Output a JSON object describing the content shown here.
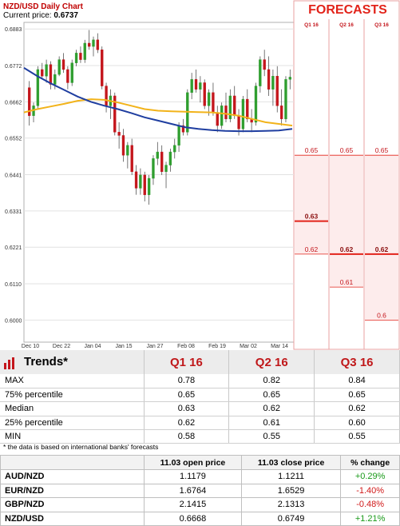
{
  "chart_data": {
    "type": "candlestick",
    "title": "NZD/USD Daily Chart",
    "current_price_label": "Current price:",
    "current_price": "0.6737",
    "y_ticks": [
      "0.6883",
      "0.6772",
      "0.6662",
      "0.6552",
      "0.6441",
      "0.6331",
      "0.6221",
      "0.6110",
      "0.6000"
    ],
    "ylim": [
      0.5933,
      0.6903
    ],
    "x_ticks": [
      "Dec 10",
      "Dec 22",
      "Jan 04",
      "Jan 15",
      "Jan 27",
      "Feb 08",
      "Feb 19",
      "Mar 02",
      "Mar 14"
    ],
    "candles": [
      [
        0.6705,
        0.6725,
        0.659,
        0.662
      ],
      [
        0.662,
        0.666,
        0.66,
        0.665
      ],
      [
        0.665,
        0.677,
        0.664,
        0.676
      ],
      [
        0.676,
        0.678,
        0.673,
        0.674
      ],
      [
        0.674,
        0.679,
        0.672,
        0.6775
      ],
      [
        0.6775,
        0.6785,
        0.67,
        0.6715
      ],
      [
        0.6715,
        0.676,
        0.67,
        0.6745
      ],
      [
        0.6745,
        0.68,
        0.674,
        0.679
      ],
      [
        0.679,
        0.681,
        0.675,
        0.676
      ],
      [
        0.676,
        0.677,
        0.67,
        0.672
      ],
      [
        0.672,
        0.679,
        0.671,
        0.678
      ],
      [
        0.678,
        0.682,
        0.677,
        0.681
      ],
      [
        0.681,
        0.683,
        0.678,
        0.679
      ],
      [
        0.679,
        0.685,
        0.678,
        0.684
      ],
      [
        0.684,
        0.688,
        0.682,
        0.683
      ],
      [
        0.683,
        0.686,
        0.68,
        0.685
      ],
      [
        0.685,
        0.687,
        0.681,
        0.682
      ],
      [
        0.682,
        0.683,
        0.67,
        0.671
      ],
      [
        0.671,
        0.672,
        0.663,
        0.665
      ],
      [
        0.665,
        0.67,
        0.661,
        0.668
      ],
      [
        0.668,
        0.669,
        0.656,
        0.657
      ],
      [
        0.657,
        0.66,
        0.652,
        0.656
      ],
      [
        0.656,
        0.658,
        0.648,
        0.65
      ],
      [
        0.65,
        0.654,
        0.646,
        0.653
      ],
      [
        0.653,
        0.655,
        0.644,
        0.645
      ],
      [
        0.645,
        0.647,
        0.638,
        0.64
      ],
      [
        0.64,
        0.646,
        0.638,
        0.644
      ],
      [
        0.644,
        0.645,
        0.636,
        0.638
      ],
      [
        0.638,
        0.644,
        0.635,
        0.643
      ],
      [
        0.643,
        0.65,
        0.641,
        0.649
      ],
      [
        0.649,
        0.654,
        0.647,
        0.651
      ],
      [
        0.651,
        0.653,
        0.644,
        0.645
      ],
      [
        0.645,
        0.648,
        0.64,
        0.647
      ],
      [
        0.647,
        0.652,
        0.645,
        0.651
      ],
      [
        0.651,
        0.655,
        0.649,
        0.653
      ],
      [
        0.653,
        0.66,
        0.651,
        0.659
      ],
      [
        0.659,
        0.661,
        0.656,
        0.657
      ],
      [
        0.657,
        0.67,
        0.656,
        0.669
      ],
      [
        0.669,
        0.675,
        0.667,
        0.673
      ],
      [
        0.673,
        0.676,
        0.669,
        0.67
      ],
      [
        0.67,
        0.674,
        0.666,
        0.672
      ],
      [
        0.672,
        0.673,
        0.664,
        0.665
      ],
      [
        0.665,
        0.67,
        0.662,
        0.669
      ],
      [
        0.669,
        0.672,
        0.662,
        0.663
      ],
      [
        0.663,
        0.665,
        0.657,
        0.659
      ],
      [
        0.659,
        0.666,
        0.658,
        0.665
      ],
      [
        0.665,
        0.669,
        0.66,
        0.661
      ],
      [
        0.661,
        0.67,
        0.66,
        0.668
      ],
      [
        0.668,
        0.671,
        0.661,
        0.662
      ],
      [
        0.662,
        0.664,
        0.656,
        0.658
      ],
      [
        0.658,
        0.668,
        0.657,
        0.667
      ],
      [
        0.667,
        0.67,
        0.66,
        0.661
      ],
      [
        0.661,
        0.664,
        0.657,
        0.66
      ],
      [
        0.66,
        0.672,
        0.659,
        0.671
      ],
      [
        0.671,
        0.68,
        0.669,
        0.679
      ],
      [
        0.679,
        0.682,
        0.674,
        0.676
      ],
      [
        0.676,
        0.68,
        0.668,
        0.67
      ],
      [
        0.67,
        0.676,
        0.665,
        0.674
      ],
      [
        0.674,
        0.677,
        0.663,
        0.665
      ],
      [
        0.665,
        0.67,
        0.659,
        0.661
      ],
      [
        0.661,
        0.674,
        0.66,
        0.673
      ],
      [
        0.673,
        0.676,
        0.67,
        0.6737
      ]
    ],
    "ma_fast": [
      0.663,
      0.664,
      0.6648,
      0.6656,
      0.6665,
      0.667,
      0.6668,
      0.666,
      0.665,
      0.664,
      0.6635,
      0.6633,
      0.6632,
      0.6631,
      0.663,
      0.6626,
      0.662,
      0.661,
      0.66,
      0.6595,
      0.659
    ],
    "ma_slow": [
      0.6765,
      0.674,
      0.6718,
      0.6698,
      0.6678,
      0.6662,
      0.665,
      0.664,
      0.6628,
      0.6615,
      0.6605,
      0.6595,
      0.6585,
      0.658,
      0.6576,
      0.6574,
      0.6573,
      0.6573,
      0.6574,
      0.6575,
      0.658
    ],
    "forecast_title": "FORECASTS",
    "forecast_columns": [
      {
        "label": "Q1 16",
        "values": [
          {
            "v": 0.65,
            "text": "0.65"
          },
          {
            "v": 0.63,
            "text": "0.63",
            "bold": true
          },
          {
            "v": 0.62,
            "text": "0.62"
          }
        ]
      },
      {
        "label": "Q2 16",
        "values": [
          {
            "v": 0.65,
            "text": "0.65"
          },
          {
            "v": 0.62,
            "text": "0.62",
            "bold": true
          },
          {
            "v": 0.61,
            "text": "0.61"
          }
        ]
      },
      {
        "label": "Q3 16",
        "values": [
          {
            "v": 0.65,
            "text": "0.65"
          },
          {
            "v": 0.62,
            "text": "0.62",
            "bold": true
          },
          {
            "v": 0.6,
            "text": "0.6"
          }
        ]
      }
    ]
  },
  "trends": {
    "title": "Trends*",
    "columns": [
      "Q1 16",
      "Q2 16",
      "Q3 16"
    ],
    "rows": [
      {
        "label": "MAX",
        "values": [
          "0.78",
          "0.82",
          "0.84"
        ]
      },
      {
        "label": "75% percentile",
        "values": [
          "0.65",
          "0.65",
          "0.65"
        ]
      },
      {
        "label": "Median",
        "values": [
          "0.63",
          "0.62",
          "0.62"
        ]
      },
      {
        "label": "25% percentile",
        "values": [
          "0.62",
          "0.61",
          "0.60"
        ]
      },
      {
        "label": "MIN",
        "values": [
          "0.58",
          "0.55",
          "0.55"
        ]
      }
    ],
    "note": "* the data is based on international banks' forecasts"
  },
  "rates": {
    "headers": [
      "",
      "11.03 open price",
      "11.03 close price",
      "% change"
    ],
    "rows": [
      {
        "pair": "AUD/NZD",
        "open": "1.1179",
        "close": "1.1211",
        "change": "+0.29%",
        "dir": "pos"
      },
      {
        "pair": "EUR/NZD",
        "open": "1.6764",
        "close": "1.6529",
        "change": "-1.40%",
        "dir": "neg"
      },
      {
        "pair": "GBP/NZD",
        "open": "2.1415",
        "close": "2.1313",
        "change": "-0.48%",
        "dir": "neg"
      },
      {
        "pair": "NZD/USD",
        "open": "0.6668",
        "close": "0.6749",
        "change": "+1.21%",
        "dir": "pos"
      }
    ]
  },
  "colors": {
    "up": "#2f9e2f",
    "down": "#c4161c",
    "ma_fast": "#f2b31a",
    "ma_slow": "#1f3ea0",
    "forecast": "#e2231a"
  }
}
